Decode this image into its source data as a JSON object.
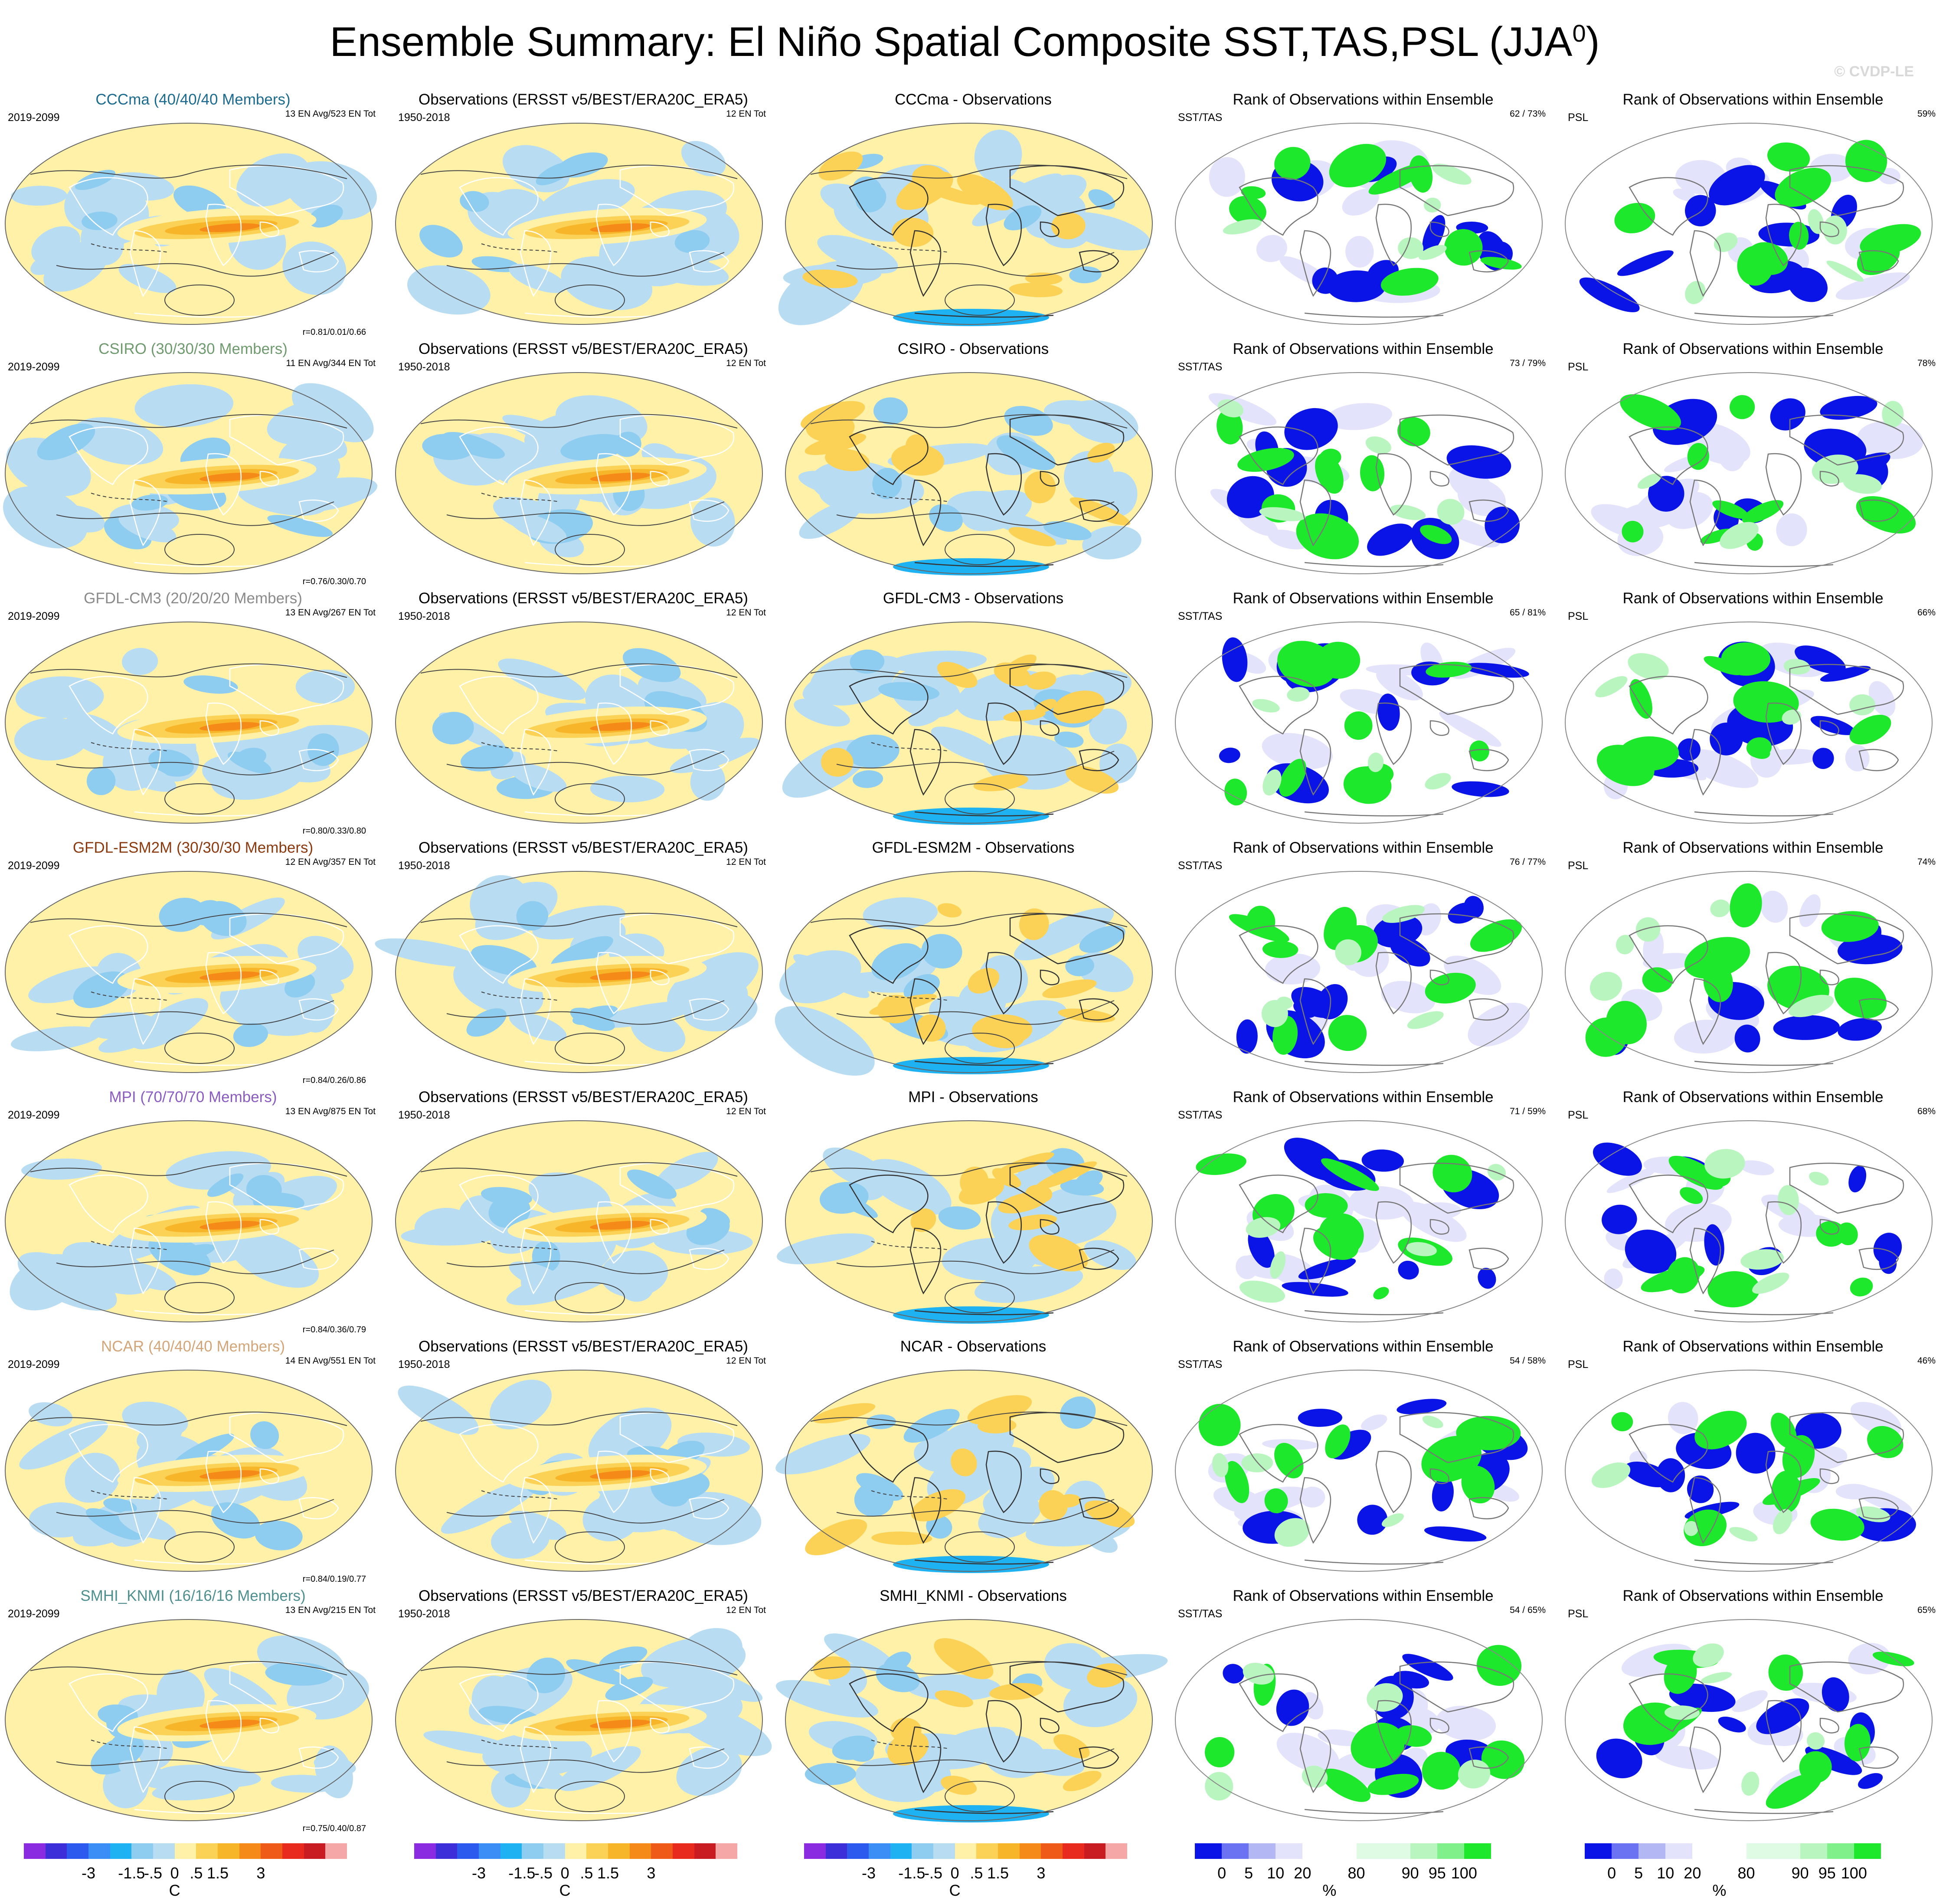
{
  "figure": {
    "title_main": "Ensemble Summary: El Niño Spatial Composite SST,TAS,PSL (JJA",
    "title_sup": "0",
    "title_close": ")",
    "watermark": "© CVDP-LE"
  },
  "colors": {
    "sst_palette": [
      "#8a2be2",
      "#3c2fd9",
      "#2c59ee",
      "#3b8ef5",
      "#1fb2f2",
      "#8fcdf0",
      "#b8dcf2",
      "#fff2a8",
      "#fbd256",
      "#f7b52a",
      "#f58a18",
      "#ef5a19",
      "#e82a1e",
      "#c81b22",
      "#f5a6a6"
    ],
    "rank_palette": [
      "#0a14e6",
      "#6b73f2",
      "#b3b8f5",
      "#e3e4fb",
      "#ffffff",
      "#e0fbe4",
      "#b8f5bf",
      "#7ff08a",
      "#1ee82c"
    ]
  },
  "chart_data": {
    "type": "heatmap",
    "grid": {
      "rows": 7,
      "columns": 5
    },
    "column_titles": {
      "col2": "Observations (ERSST v5/BEST/ERA20C_ERA5)",
      "col4": "Rank of Observations within Ensemble",
      "col5": "Rank of Observations within Ensemble"
    },
    "col2_period": "1950-2018",
    "col2_count": "12 EN Tot",
    "col1_period": "2019-2099",
    "col4_label": "SST/TAS",
    "col5_label": "PSL",
    "rows": [
      {
        "model_title": "CCCma (40/40/40 Members)",
        "title_color": "#1c6b8e",
        "en_count": "13 EN Avg/523 EN Tot",
        "pattern_corr": "r=0.81/0.01/0.66",
        "diff_title": "CCCma - Observations",
        "rank_sst_tas": "62 /  73%",
        "rank_psl": "59%"
      },
      {
        "model_title": "CSIRO (30/30/30 Members)",
        "title_color": "#6e9a6e",
        "en_count": "11 EN Avg/344 EN Tot",
        "pattern_corr": "r=0.76/0.30/0.70",
        "diff_title": "CSIRO - Observations",
        "rank_sst_tas": "73 /  79%",
        "rank_psl": "78%"
      },
      {
        "model_title": "GFDL-CM3 (20/20/20 Members)",
        "title_color": "#8a8a8a",
        "en_count": "13 EN Avg/267 EN Tot",
        "pattern_corr": "r=0.80/0.33/0.80",
        "diff_title": "GFDL-CM3 - Observations",
        "rank_sst_tas": "65 /  81%",
        "rank_psl": "66%"
      },
      {
        "model_title": "GFDL-ESM2M (30/30/30 Members)",
        "title_color": "#8b3a0f",
        "en_count": "12 EN Avg/357 EN Tot",
        "pattern_corr": "r=0.84/0.26/0.86",
        "diff_title": "GFDL-ESM2M - Observations",
        "rank_sst_tas": "76 /  77%",
        "rank_psl": "74%"
      },
      {
        "model_title": "MPI (70/70/70 Members)",
        "title_color": "#8a5cc0",
        "en_count": "13 EN Avg/875 EN Tot",
        "pattern_corr": "r=0.84/0.36/0.79",
        "diff_title": "MPI - Observations",
        "rank_sst_tas": "71 /  59%",
        "rank_psl": "68%"
      },
      {
        "model_title": "NCAR (40/40/40 Members)",
        "title_color": "#d2a679",
        "en_count": "14 EN Avg/551 EN Tot",
        "pattern_corr": "r=0.84/0.19/0.77",
        "diff_title": "NCAR - Observations",
        "rank_sst_tas": "54 /  58%",
        "rank_psl": "46%"
      },
      {
        "model_title": "SMHI_KNMI (16/16/16 Members)",
        "title_color": "#4f8f8f",
        "en_count": "13 EN Avg/215 EN Tot",
        "pattern_corr": "r=0.75/0.40/0.87",
        "diff_title": "SMHI_KNMI - Observations",
        "rank_sst_tas": "54 /  65%",
        "rank_psl": "65%"
      }
    ],
    "colorbar_sst": {
      "ticks": [
        "-3",
        "-1.5",
        "-.5",
        "0",
        ".5",
        "1.5",
        "3"
      ],
      "units": "C"
    },
    "colorbar_rank": {
      "ticks": [
        "0",
        "5",
        "10",
        "20",
        "80",
        "90",
        "95",
        "100"
      ],
      "units": "%"
    }
  }
}
